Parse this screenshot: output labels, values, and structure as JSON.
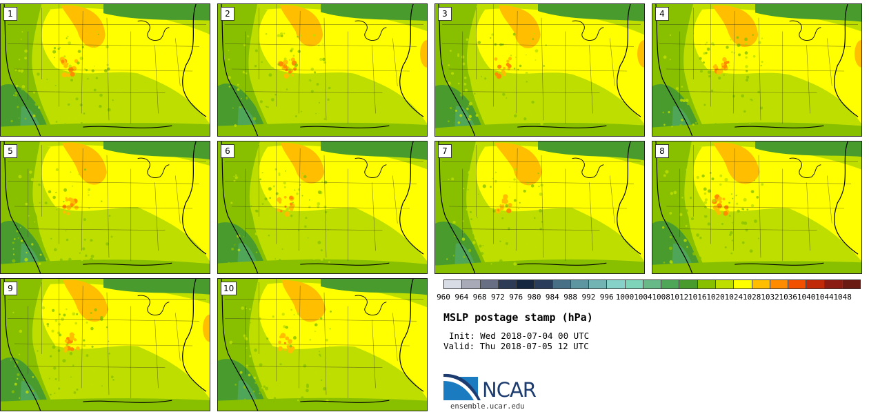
{
  "panels": [
    {
      "label": "1"
    },
    {
      "label": "2"
    },
    {
      "label": "3"
    },
    {
      "label": "4"
    },
    {
      "label": "5"
    },
    {
      "label": "6"
    },
    {
      "label": "7"
    },
    {
      "label": "8"
    },
    {
      "label": "9"
    },
    {
      "label": "10"
    }
  ],
  "colorbar": {
    "levels": [
      "960",
      "964",
      "968",
      "972",
      "976",
      "980",
      "984",
      "988",
      "992",
      "996",
      "1000",
      "1004",
      "1008",
      "1012",
      "1016",
      "1020",
      "1024",
      "1028",
      "1032",
      "1036",
      "1040",
      "1044",
      "1048"
    ],
    "colors": [
      "#d8dce4",
      "#a8aab8",
      "#686f84",
      "#2e3b57",
      "#162640",
      "#2a3e5c",
      "#476f85",
      "#5d95a0",
      "#72b3b4",
      "#86d2c9",
      "#7dd4b8",
      "#67ba88",
      "#4fa659",
      "#4a9b2e",
      "#88c000",
      "#bede00",
      "#ffff00",
      "#ffbf00",
      "#ff8c00",
      "#f05000",
      "#c02a08",
      "#8b1c14",
      "#6a1a12"
    ]
  },
  "title": "MSLP postage stamp (hPa)",
  "init": "Init: Wed 2018-07-04 00 UTC",
  "valid": "Valid: Thu 2018-07-05 12 UTC",
  "logo": {
    "text": "NCAR",
    "url": "ensemble.ucar.edu"
  }
}
